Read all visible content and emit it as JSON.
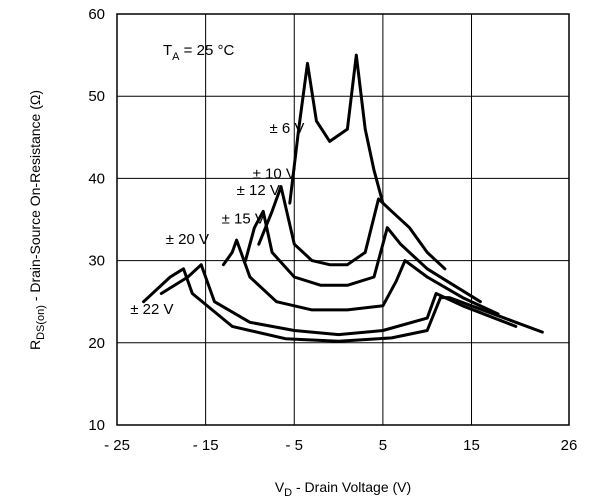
{
  "chart_data": {
    "type": "line",
    "title": "",
    "xlabel": {
      "main": "V",
      "sub": "D",
      "rest": " - Drain Voltage (V)"
    },
    "ylabel": {
      "main": "R",
      "sub": "DS(on)",
      "rest": " - Drain-Source On-Resistance (Ω)"
    },
    "annotation": {
      "main": "T",
      "sub": "A",
      "rest": " = 25 °C"
    },
    "xlim": [
      -25,
      26
    ],
    "ylim": [
      10,
      60
    ],
    "x_ticks": [
      {
        "value": -25,
        "label": "- 25"
      },
      {
        "value": -15,
        "label": "- 15"
      },
      {
        "value": -5,
        "label": "- 5"
      },
      {
        "value": 5,
        "label": "5"
      },
      {
        "value": 15,
        "label": "15"
      },
      {
        "value": 26,
        "label": "26"
      }
    ],
    "y_ticks": [
      {
        "value": 10,
        "label": "10"
      },
      {
        "value": 20,
        "label": "20"
      },
      {
        "value": 30,
        "label": "30"
      },
      {
        "value": 40,
        "label": "40"
      },
      {
        "value": 50,
        "label": "50"
      },
      {
        "value": 60,
        "label": "60"
      }
    ],
    "grid": true,
    "series": [
      {
        "name": "± 6 V",
        "label_at": [
          -7.8,
          45.5
        ],
        "points": [
          [
            -5.5,
            37
          ],
          [
            -4.5,
            46
          ],
          [
            -3.5,
            54
          ],
          [
            -2.5,
            47
          ],
          [
            -1,
            44.5
          ],
          [
            1,
            46
          ],
          [
            2,
            55
          ],
          [
            3,
            46
          ],
          [
            4,
            41
          ],
          [
            5,
            37
          ]
        ]
      },
      {
        "name": "± 10 V",
        "label_at": [
          -9.7,
          40
        ],
        "points": [
          [
            -9,
            32
          ],
          [
            -7.5,
            36
          ],
          [
            -6.5,
            39
          ],
          [
            -5,
            32
          ],
          [
            -3,
            30
          ],
          [
            -1,
            29.5
          ],
          [
            1,
            29.5
          ],
          [
            3,
            31
          ],
          [
            4.5,
            37.5
          ],
          [
            6,
            36
          ],
          [
            8,
            34
          ],
          [
            10,
            31
          ],
          [
            12,
            29
          ]
        ]
      },
      {
        "name": "± 12 V",
        "label_at": [
          -11.5,
          38
        ],
        "points": [
          [
            -10.5,
            30
          ],
          [
            -9.5,
            34
          ],
          [
            -8.5,
            36
          ],
          [
            -7.5,
            31
          ],
          [
            -5,
            28
          ],
          [
            -2,
            27
          ],
          [
            1,
            27
          ],
          [
            4,
            28
          ],
          [
            5.5,
            34
          ],
          [
            7,
            32
          ],
          [
            10,
            29
          ],
          [
            13,
            27
          ],
          [
            16,
            25
          ]
        ]
      },
      {
        "name": "± 15 V",
        "label_at": [
          -13.2,
          34.5
        ],
        "points": [
          [
            -13,
            29.5
          ],
          [
            -12,
            31
          ],
          [
            -11.5,
            32.5
          ],
          [
            -10,
            28
          ],
          [
            -7,
            25
          ],
          [
            -3,
            24
          ],
          [
            1,
            24
          ],
          [
            5,
            24.5
          ],
          [
            6.5,
            27.5
          ],
          [
            7.5,
            30
          ],
          [
            10,
            28
          ],
          [
            14,
            25.5
          ],
          [
            18,
            23.5
          ]
        ]
      },
      {
        "name": "± 20 V",
        "label_at": [
          -19.5,
          32
        ],
        "points": [
          [
            -20,
            26
          ],
          [
            -17,
            28
          ],
          [
            -15.5,
            29.5
          ],
          [
            -14,
            25
          ],
          [
            -10,
            22.5
          ],
          [
            -5,
            21.5
          ],
          [
            0,
            21
          ],
          [
            5,
            21.5
          ],
          [
            10,
            23
          ],
          [
            11,
            26
          ],
          [
            14,
            24.5
          ],
          [
            20,
            22
          ]
        ]
      },
      {
        "name": "± 22 V",
        "label_at": [
          -23.5,
          23.5
        ],
        "points": [
          [
            -22,
            25
          ],
          [
            -19,
            28
          ],
          [
            -17.5,
            29
          ],
          [
            -16.5,
            26
          ],
          [
            -12,
            22
          ],
          [
            -6,
            20.5
          ],
          [
            0,
            20.2
          ],
          [
            6,
            20.6
          ],
          [
            10,
            21.5
          ],
          [
            11.5,
            25.5
          ],
          [
            12.5,
            25.5
          ],
          [
            15,
            24.5
          ],
          [
            20,
            22.5
          ],
          [
            23,
            21.3
          ]
        ]
      }
    ]
  }
}
